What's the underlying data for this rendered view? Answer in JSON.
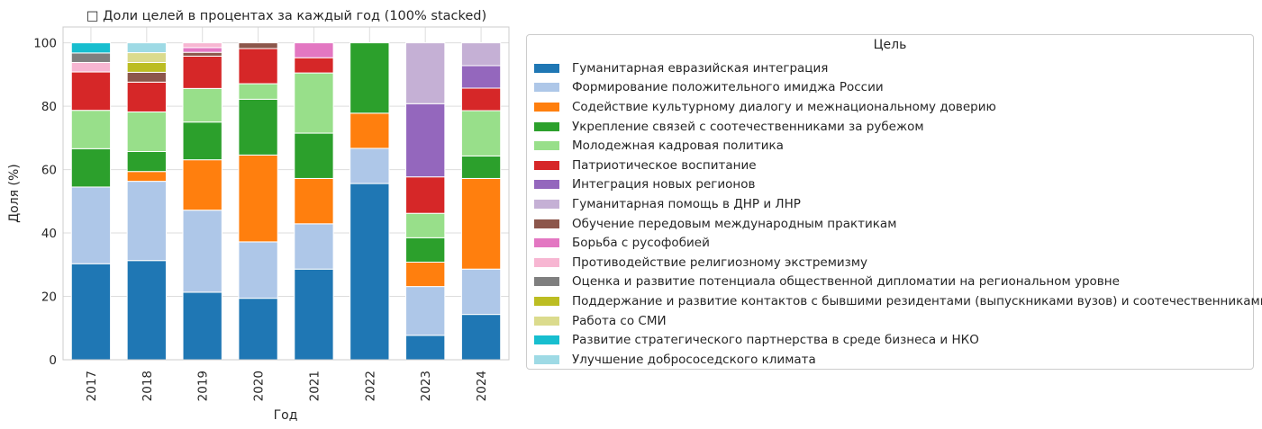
{
  "chart_data": {
    "type": "bar",
    "stacked": true,
    "title": "Доли целей в процентах за каждый год (100% stacked)",
    "title_icon": "□",
    "xlabel": "Год",
    "ylabel": "Доля (%)",
    "ylim": [
      0,
      105
    ],
    "yticks": [
      0,
      20,
      40,
      60,
      80,
      100
    ],
    "grid": true,
    "legend_title": "Цель",
    "legend_position": "right",
    "categories": [
      "2017",
      "2018",
      "2019",
      "2020",
      "2021",
      "2022",
      "2023",
      "2024"
    ],
    "series": [
      {
        "name": "Гуманитарная евразийская интеграция",
        "color": "#1f77b4",
        "values": [
          30.3,
          31.3,
          21.3,
          19.4,
          28.6,
          55.6,
          7.7,
          14.3
        ]
      },
      {
        "name": "Формирование положительного имиджа России",
        "color": "#aec7e8",
        "values": [
          24.2,
          25.0,
          25.9,
          17.8,
          14.3,
          11.1,
          15.4,
          14.3
        ]
      },
      {
        "name": "Содействие культурному диалогу и межнациональному доверию",
        "color": "#ff7f0e",
        "values": [
          0,
          3.1,
          15.9,
          27.4,
          14.3,
          11.1,
          7.7,
          28.6
        ]
      },
      {
        "name": "Укрепление связей с соотечественниками за рубежом",
        "color": "#2ca02c",
        "values": [
          12.1,
          6.3,
          11.9,
          17.6,
          14.3,
          22.2,
          7.7,
          7.1
        ]
      },
      {
        "name": "Молодежная кадровая политика",
        "color": "#98df8a",
        "values": [
          12.1,
          12.5,
          10.6,
          4.9,
          19.0,
          0,
          7.7,
          14.3
        ]
      },
      {
        "name": "Патриотическое воспитание",
        "color": "#d62728",
        "values": [
          12.1,
          9.4,
          10.2,
          11.1,
          4.8,
          0,
          11.5,
          7.1
        ]
      },
      {
        "name": "Интеграция новых регионов",
        "color": "#9467bd",
        "values": [
          0,
          0,
          0,
          0,
          0,
          0,
          23.1,
          7.1
        ]
      },
      {
        "name": "Гуманитарная помощь в ДНР и ЛНР",
        "color": "#c5b0d5",
        "values": [
          0,
          0,
          0,
          0,
          0,
          0,
          19.2,
          7.2
        ]
      },
      {
        "name": "Обучение передовым международным практикам",
        "color": "#8c564b",
        "values": [
          0,
          3.1,
          1.2,
          1.8,
          0,
          0,
          0,
          0
        ]
      },
      {
        "name": "Борьба с русофобией",
        "color": "#e377c2",
        "values": [
          0,
          0,
          1.5,
          0,
          4.7,
          0,
          0,
          0
        ]
      },
      {
        "name": "Противодействие религиозному экстремизму",
        "color": "#f7b6d2",
        "values": [
          3.0,
          0,
          1.5,
          0,
          0,
          0,
          0,
          0
        ]
      },
      {
        "name": "Оценка и развитие потенциала общественной дипломатии на региональном уровне",
        "color": "#7f7f7f",
        "values": [
          3.0,
          0,
          0,
          0,
          0,
          0,
          0,
          0
        ]
      },
      {
        "name": "Поддержание и развитие контактов с бывшими резидентами (выпускниками вузов) и соотечественниками",
        "color": "#bcbd22",
        "values": [
          0,
          3.1,
          0,
          0,
          0,
          0,
          0,
          0
        ]
      },
      {
        "name": "Работа со СМИ",
        "color": "#dbdb8d",
        "values": [
          0,
          3.1,
          0,
          0,
          0,
          0,
          0,
          0
        ]
      },
      {
        "name": "Развитие стратегического партнерства в среде бизнеса и НКО",
        "color": "#17becf",
        "values": [
          3.2,
          0,
          0,
          0,
          0,
          0,
          0,
          0
        ]
      },
      {
        "name": "Улучшение добрососедского климата",
        "color": "#9edae5",
        "values": [
          0,
          3.1,
          0,
          0,
          0,
          0,
          0,
          0
        ]
      }
    ]
  }
}
